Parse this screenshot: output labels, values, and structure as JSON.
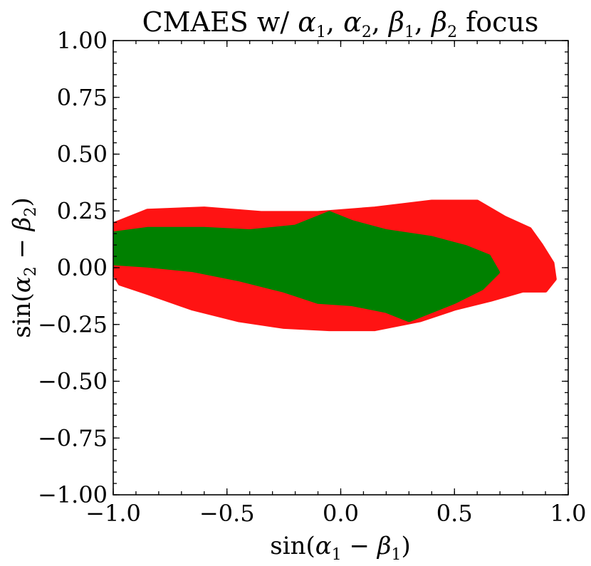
{
  "chart_data": {
    "type": "scatter",
    "title": "CMAES w/ α₁, α₂, β₁, β₂ focus",
    "xlabel": "sin(α₁ − β₁)",
    "ylabel": "sin(α₂ − β₂)",
    "xlim": [
      -1.0,
      1.0
    ],
    "ylim": [
      -1.0,
      1.0
    ],
    "x_ticks": [
      "−1.0",
      "−0.5",
      "0.0",
      "0.5",
      "1.0"
    ],
    "y_ticks": [
      "−1.00",
      "−0.75",
      "−0.50",
      "−0.25",
      "0.00",
      "0.25",
      "0.50",
      "0.75",
      "1.00"
    ],
    "grid": false,
    "series": [
      {
        "color": "#ff0000",
        "region_outline": [
          [
            -1.0,
            0.19
          ],
          [
            -0.85,
            0.25
          ],
          [
            -0.6,
            0.26
          ],
          [
            -0.35,
            0.24
          ],
          [
            -0.1,
            0.24
          ],
          [
            0.15,
            0.26
          ],
          [
            0.4,
            0.29
          ],
          [
            0.6,
            0.29
          ],
          [
            0.72,
            0.22
          ],
          [
            0.83,
            0.17
          ],
          [
            0.88,
            0.1
          ],
          [
            0.93,
            0.02
          ],
          [
            0.94,
            -0.05
          ],
          [
            0.9,
            -0.1
          ],
          [
            0.8,
            -0.1
          ],
          [
            0.66,
            -0.14
          ],
          [
            0.5,
            -0.18
          ],
          [
            0.35,
            -0.23
          ],
          [
            0.15,
            -0.27
          ],
          [
            -0.05,
            -0.27
          ],
          [
            -0.25,
            -0.26
          ],
          [
            -0.45,
            -0.23
          ],
          [
            -0.65,
            -0.18
          ],
          [
            -0.85,
            -0.11
          ],
          [
            -0.97,
            -0.07
          ],
          [
            -1.0,
            -0.02
          ]
        ]
      },
      {
        "color": "#008000",
        "region_outline": [
          [
            -1.0,
            0.15
          ],
          [
            -0.85,
            0.17
          ],
          [
            -0.6,
            0.17
          ],
          [
            -0.4,
            0.16
          ],
          [
            -0.2,
            0.18
          ],
          [
            -0.05,
            0.24
          ],
          [
            0.05,
            0.2
          ],
          [
            0.2,
            0.16
          ],
          [
            0.4,
            0.13
          ],
          [
            0.55,
            0.09
          ],
          [
            0.65,
            0.05
          ],
          [
            0.69,
            -0.02
          ],
          [
            0.62,
            -0.09
          ],
          [
            0.5,
            -0.15
          ],
          [
            0.4,
            -0.19
          ],
          [
            0.3,
            -0.23
          ],
          [
            0.2,
            -0.19
          ],
          [
            0.05,
            -0.16
          ],
          [
            -0.1,
            -0.15
          ],
          [
            -0.25,
            -0.1
          ],
          [
            -0.45,
            -0.05
          ],
          [
            -0.65,
            -0.01
          ],
          [
            -0.85,
            0.01
          ],
          [
            -1.0,
            0.02
          ]
        ]
      }
    ]
  }
}
